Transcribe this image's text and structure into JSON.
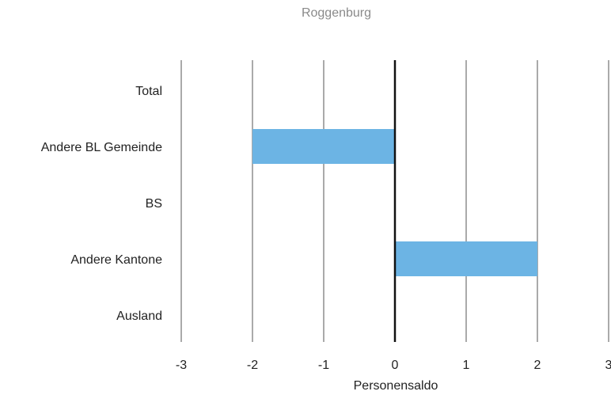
{
  "chart_data": {
    "type": "bar",
    "orientation": "horizontal",
    "subtitle": "Roggenburg",
    "categories": [
      "Total",
      "Andere BL Gemeinde",
      "BS",
      "Andere Kantone",
      "Ausland"
    ],
    "values": [
      0,
      -2,
      0,
      2,
      0
    ],
    "xlabel": "Personensaldo",
    "xlim": [
      -3,
      3
    ],
    "xticks": [
      -3,
      -2,
      -1,
      0,
      1,
      2,
      3
    ],
    "xtick_labels": [
      "-3",
      "-2",
      "-1",
      "0",
      "1",
      "2",
      "3"
    ],
    "grid": "vertical",
    "bar_color": "#6cb4e4"
  }
}
